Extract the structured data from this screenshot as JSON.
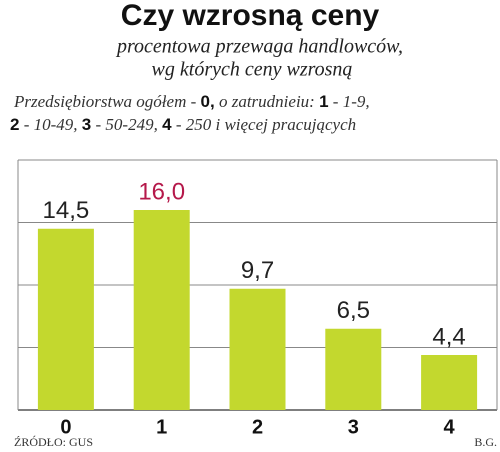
{
  "chart_data": {
    "type": "bar",
    "title": "Czy wzrosną ceny",
    "subtitle": [
      "procentowa przewaga handlowców,",
      "wg których ceny wzrosną"
    ],
    "note": [
      [
        {
          "text": "Przedsiębiorstwa ogółem - ",
          "bold": false
        },
        {
          "text": "0,",
          "bold": true
        },
        {
          "text": " o zatrudnieiu: ",
          "bold": false
        },
        {
          "text": "1",
          "bold": true
        },
        {
          "text": " - 1-9,",
          "bold": false
        }
      ],
      [
        {
          "text": "2",
          "bold": true
        },
        {
          "text": " - 10-49, ",
          "bold": false
        },
        {
          "text": "3",
          "bold": true
        },
        {
          "text": " - 50-249, ",
          "bold": false
        },
        {
          "text": "4",
          "bold": true
        },
        {
          "text": " - 250 i więcej pracujących",
          "bold": false
        }
      ]
    ],
    "categories": [
      "0",
      "1",
      "2",
      "3",
      "4"
    ],
    "values": [
      14.5,
      16.0,
      9.7,
      6.5,
      4.4
    ],
    "value_labels": [
      "14,5",
      "16,0",
      "9,7",
      "6,5",
      "4,4"
    ],
    "value_label_colors": [
      "#222222",
      "#b5184a",
      "#222222",
      "#222222",
      "#222222"
    ],
    "color": "#c3d82e",
    "ylim": [
      0,
      20
    ],
    "yticks": [
      0,
      5,
      10,
      15,
      20
    ],
    "grid": true,
    "source": "ŹRÓDŁO: GUS",
    "author": "B.G."
  }
}
